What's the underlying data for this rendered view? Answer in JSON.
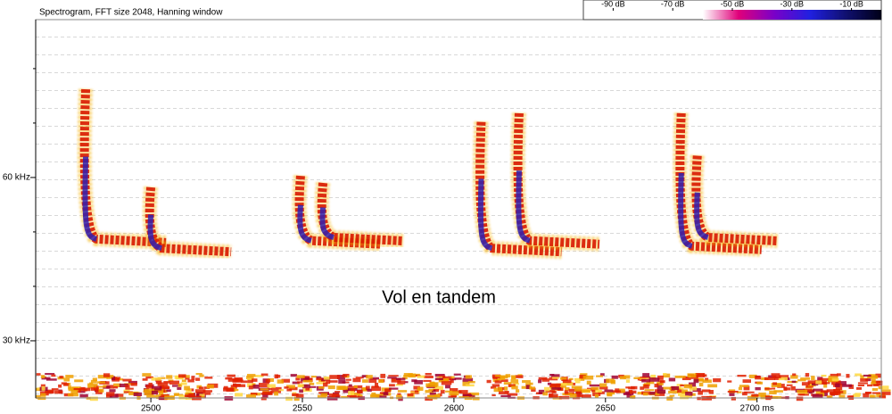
{
  "chart_data": {
    "type": "spectrogram",
    "title": "Spectrogram, FFT size 2048, Hanning window",
    "annotation": "Vol en tandem",
    "xlim": [
      2462,
      2741
    ],
    "ylim": [
      19.5,
      89
    ],
    "xticks": [
      2500,
      2550,
      2600,
      2650,
      {
        "value": 2700,
        "label": "2700 ms"
      }
    ],
    "yticks": [
      {
        "value": 30,
        "label": "30 kHz"
      },
      {
        "value": 60,
        "label": "60 kHz"
      }
    ],
    "yminor": [
      40,
      50,
      70,
      80
    ],
    "colorbar": {
      "lim": [
        -100,
        0
      ],
      "ticks": [
        {
          "value": -90,
          "label": "-90 dB"
        },
        {
          "value": -70,
          "label": "-70 dB"
        },
        {
          "value": -50,
          "label": "-50 dB"
        },
        {
          "value": -30,
          "label": "-30 dB"
        },
        {
          "value": -10,
          "label": "-10 dB"
        }
      ],
      "colors": [
        "#ffffff",
        "#e0007a",
        "#7a00c8",
        "#2020e0",
        "#101070",
        "#000018"
      ]
    },
    "calls": [
      {
        "x": 2478.5,
        "fmax": 76.2,
        "fmin": 48.7
      },
      {
        "x": 2500,
        "fmax": 58.2,
        "fmin": 47
      },
      {
        "x": 2549.4,
        "fmax": 60.3,
        "fmin": 48.4
      },
      {
        "x": 2556.8,
        "fmax": 59,
        "fmin": 49
      },
      {
        "x": 2609,
        "fmax": 70.2,
        "fmin": 47
      },
      {
        "x": 2621.5,
        "fmax": 71.8,
        "fmin": 48.4
      },
      {
        "x": 2675,
        "fmax": 71.8,
        "fmin": 47.4
      },
      {
        "x": 2680.3,
        "fmax": 64,
        "fmin": 49
      }
    ]
  }
}
